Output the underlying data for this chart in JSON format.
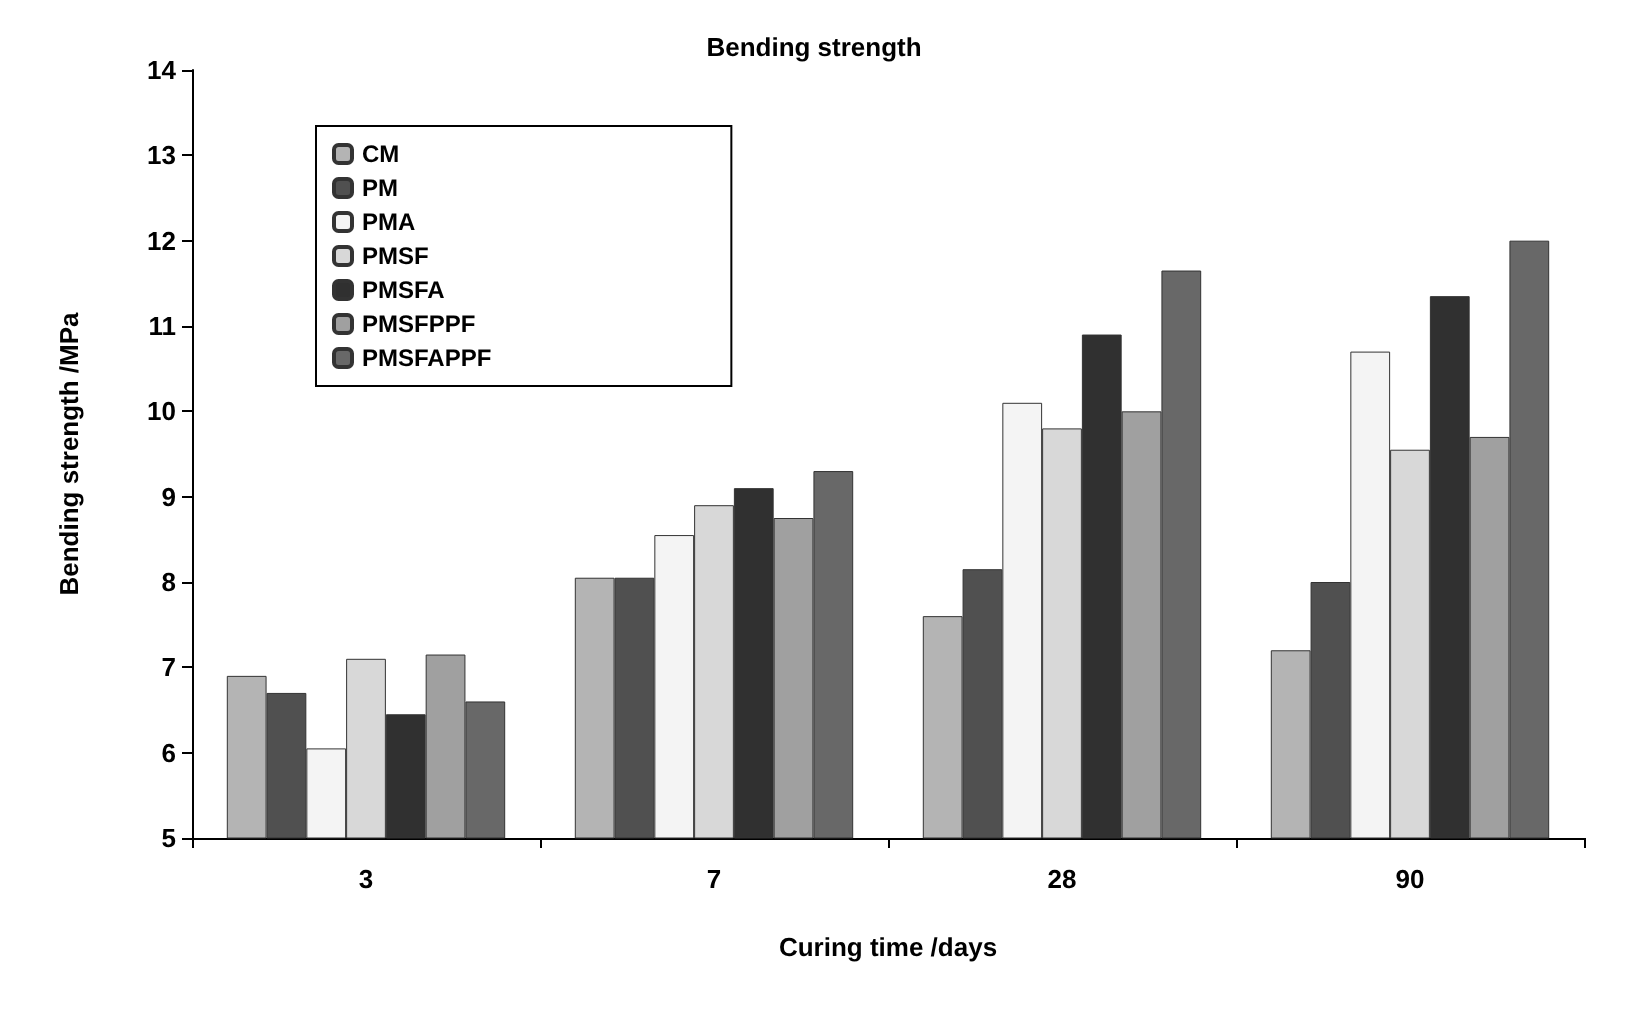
{
  "chart_data": {
    "type": "bar",
    "title": "Bending strength",
    "xlabel": "Curing time /days",
    "ylabel": "Bending strength /MPa",
    "categories": [
      "3",
      "7",
      "28",
      "90"
    ],
    "ylim": [
      5,
      14
    ],
    "yticks": [
      5,
      6,
      7,
      8,
      9,
      10,
      11,
      12,
      13,
      14
    ],
    "grid": false,
    "legend": "top left",
    "series": [
      {
        "name": "CM",
        "color": "#b4b4b4",
        "values": [
          6.9,
          8.05,
          7.6,
          7.2
        ]
      },
      {
        "name": "PM",
        "color": "#505050",
        "values": [
          6.7,
          8.05,
          8.15,
          8.0
        ]
      },
      {
        "name": "PMA",
        "color": "#f4f4f4",
        "values": [
          6.05,
          8.55,
          10.1,
          10.7
        ]
      },
      {
        "name": "PMSF",
        "color": "#d8d8d8",
        "values": [
          7.1,
          8.9,
          9.8,
          9.55
        ]
      },
      {
        "name": "PMSFA",
        "color": "#303030",
        "values": [
          6.45,
          9.1,
          10.9,
          11.35
        ]
      },
      {
        "name": "PMSFPPF",
        "color": "#a0a0a0",
        "values": [
          7.15,
          8.75,
          10.0,
          9.7
        ]
      },
      {
        "name": "PMSFAPPF",
        "color": "#686868",
        "values": [
          6.6,
          9.3,
          11.65,
          12.0
        ]
      }
    ]
  }
}
